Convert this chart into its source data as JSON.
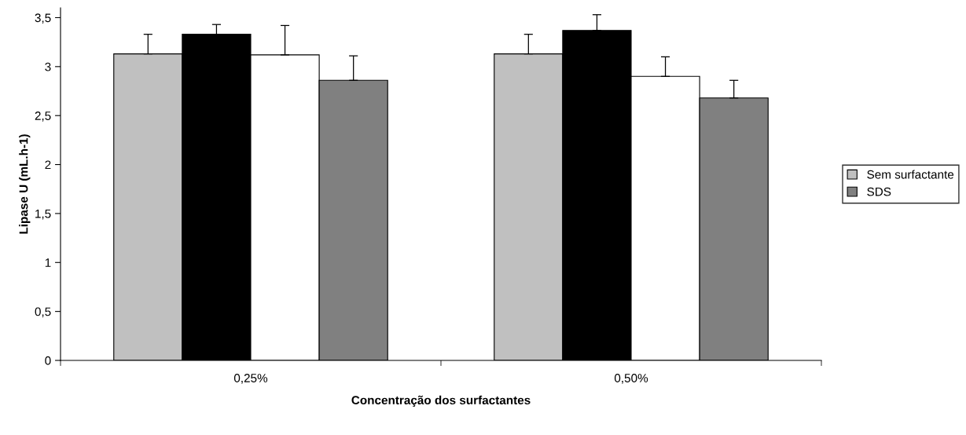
{
  "chart_data": {
    "type": "bar",
    "xlabel": "Concentração dos surfactantes",
    "ylabel": "Lipase U (mL.h-1)",
    "categories": [
      "0,25%",
      "0,50%"
    ],
    "series": [
      {
        "name": "Sem surfactante",
        "color": "#c0c0c0",
        "values": [
          3.13,
          3.13
        ],
        "errors": [
          0.2,
          0.2
        ]
      },
      {
        "color": "#000000",
        "values": [
          3.33,
          3.37
        ],
        "errors": [
          0.1,
          0.16
        ]
      },
      {
        "color": "#ffffff",
        "values": [
          3.12,
          2.9
        ],
        "errors": [
          0.3,
          0.2
        ]
      },
      {
        "name": "SDS",
        "color": "#808080",
        "values": [
          2.86,
          2.68
        ],
        "errors": [
          0.25,
          0.18
        ]
      }
    ],
    "ylim": [
      0,
      3.6
    ],
    "yticks": [
      {
        "value": 0,
        "label": "0"
      },
      {
        "value": 0.5,
        "label": "0,5"
      },
      {
        "value": 1,
        "label": "1"
      },
      {
        "value": 1.5,
        "label": "1,5"
      },
      {
        "value": 2,
        "label": "2"
      },
      {
        "value": 2.5,
        "label": "2,5"
      },
      {
        "value": 3,
        "label": "3"
      },
      {
        "value": 3.5,
        "label": "3,5"
      }
    ],
    "legend": "right",
    "grid": false
  }
}
